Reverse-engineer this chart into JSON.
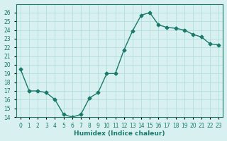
{
  "x": [
    0,
    1,
    2,
    3,
    4,
    5,
    6,
    7,
    8,
    9,
    10,
    11,
    12,
    13,
    14,
    15,
    16,
    17,
    18,
    19,
    20,
    21,
    22,
    23
  ],
  "y": [
    19.5,
    17.0,
    17.0,
    16.8,
    16.0,
    14.3,
    14.0,
    14.3,
    16.2,
    16.8,
    19.0,
    19.0,
    21.7,
    23.9,
    25.7,
    26.0,
    24.6,
    24.3,
    24.2,
    24.0,
    23.5,
    23.2,
    22.4,
    22.3
  ],
  "xlabel": "Humidex (Indice chaleur)",
  "xlim": [
    -0.5,
    23.5
  ],
  "ylim": [
    14,
    27
  ],
  "yticks": [
    14,
    15,
    16,
    17,
    18,
    19,
    20,
    21,
    22,
    23,
    24,
    25,
    26
  ],
  "xticks": [
    0,
    1,
    2,
    3,
    4,
    5,
    6,
    7,
    8,
    9,
    10,
    11,
    12,
    13,
    14,
    15,
    16,
    17,
    18,
    19,
    20,
    21,
    22,
    23
  ],
  "line_color": "#1a7a6a",
  "marker_color": "#1a7a6a",
  "bg_color": "#d9f0f0",
  "grid_color": "#aadddd",
  "xlabel_color": "#1a7a6a",
  "tick_color": "#1a7a6a"
}
